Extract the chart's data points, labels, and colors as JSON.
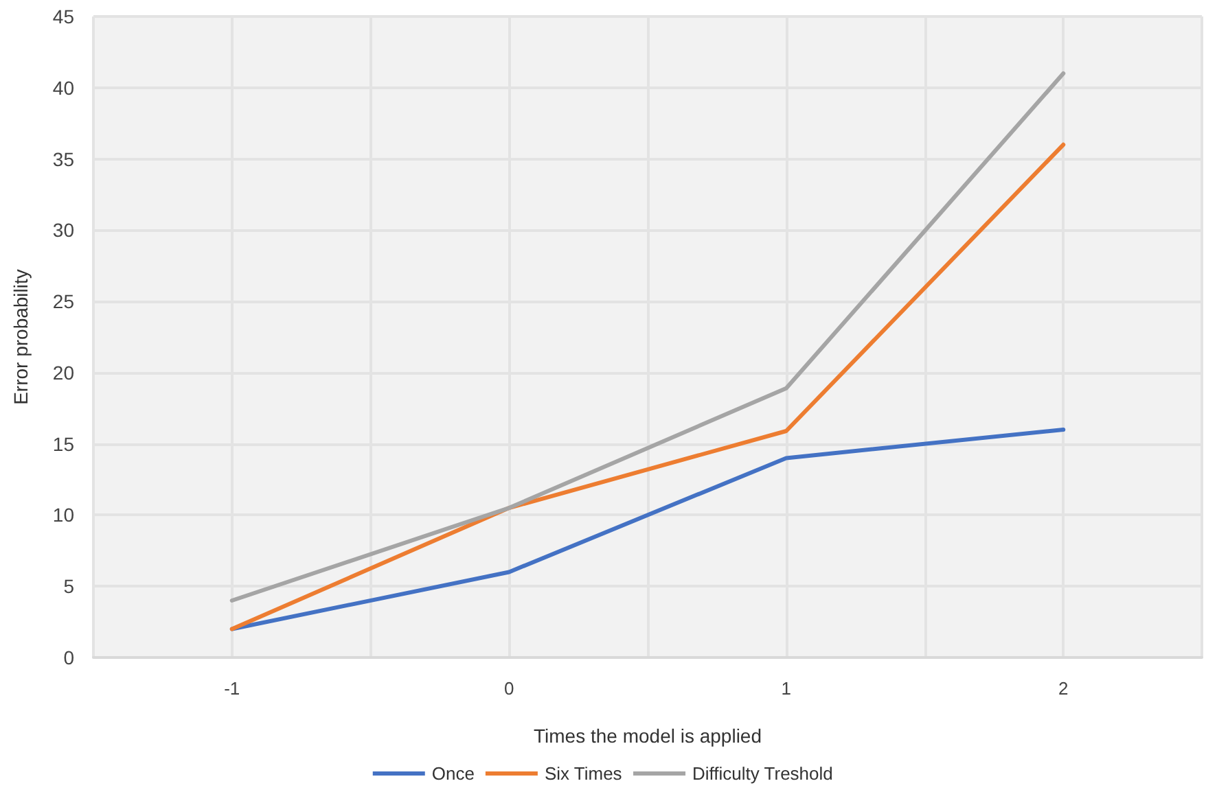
{
  "chart_data": {
    "type": "line",
    "xlabel": "Times the model is applied",
    "ylabel": "Error probability",
    "x": [
      -1,
      0,
      1,
      2
    ],
    "series": [
      {
        "name": "Once",
        "color": "#4472c4",
        "values": [
          2,
          6,
          14,
          16
        ]
      },
      {
        "name": "Six Times",
        "color": "#ed7d31",
        "values": [
          2,
          10.5,
          15.9,
          36
        ]
      },
      {
        "name": "Difficulty Treshold",
        "color": "#a5a5a5",
        "values": [
          4,
          10.5,
          18.9,
          41
        ]
      }
    ],
    "xlim": [
      -1.5,
      2.5
    ],
    "xticks": [
      {
        "value": -1.5,
        "label": null
      },
      -1,
      {
        "value": -0.5,
        "label": null
      },
      0,
      {
        "value": 0.5,
        "label": null
      },
      1,
      {
        "value": 1.5,
        "label": null
      },
      2,
      {
        "value": 2.5,
        "label": null
      }
    ],
    "ylim": [
      0,
      45
    ],
    "yticks": [
      0,
      5,
      10,
      15,
      20,
      25,
      30,
      35,
      40,
      45
    ],
    "grid": true,
    "legend": "bottom",
    "marker": "none",
    "line_style": "solid"
  }
}
